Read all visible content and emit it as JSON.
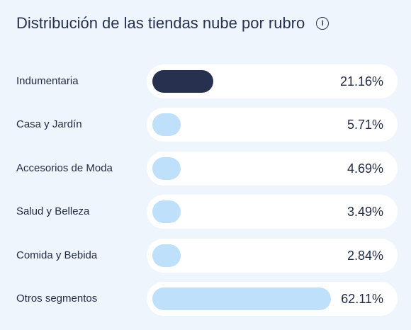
{
  "header": {
    "title": "Distribución de las tiendas nube por rubro",
    "info_icon": "info-icon"
  },
  "colors": {
    "background": "#eef5fd",
    "track": "#ffffff",
    "highlight_bar": "#283050",
    "bar": "#bfe0fb",
    "text": "#1f2a44"
  },
  "chart_data": {
    "type": "bar",
    "orientation": "horizontal",
    "title": "Distribución de las tiendas nube por rubro",
    "categories": [
      "Indumentaria",
      "Casa y Jardín",
      "Accesorios de Moda",
      "Salud y Belleza",
      "Comida y Bebida",
      "Otros segmentos"
    ],
    "values": [
      21.16,
      5.71,
      4.69,
      3.49,
      2.84,
      62.11
    ],
    "value_labels": [
      "21.16%",
      "5.71%",
      "4.69%",
      "3.49%",
      "2.84%",
      "62.11%"
    ],
    "unit": "%",
    "highlighted": [
      "Indumentaria"
    ],
    "grid": false,
    "legend": "none"
  }
}
